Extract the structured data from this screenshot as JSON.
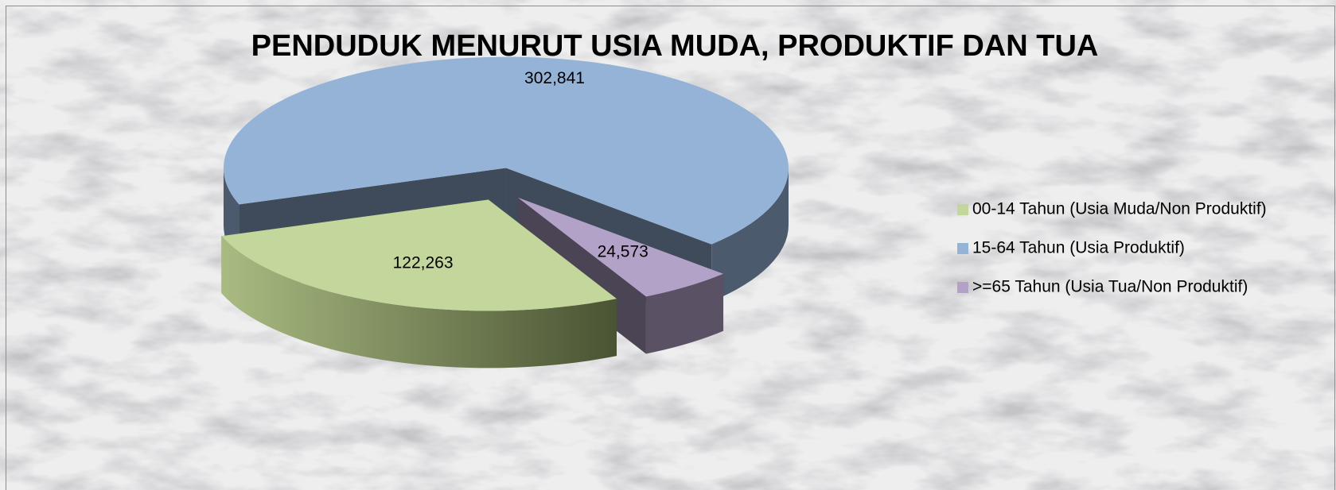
{
  "chart_data": {
    "type": "pie",
    "title": "PENDUDUK MENURUT USIA MUDA, PRODUKTIF DAN TUA",
    "categories": [
      "00-14 Tahun (Usia Muda/Non Produktif)",
      "15-64 Tahun (Usia Produktif)",
      ">=65 Tahun (Usia Tua/Non Produktif)"
    ],
    "values": [
      122263,
      302841,
      24573
    ],
    "value_labels": [
      "122,263",
      "302,841",
      "24,573"
    ],
    "colors": [
      "#c3d69b",
      "#95b3d7",
      "#b3a2c7"
    ],
    "legend": "right"
  }
}
